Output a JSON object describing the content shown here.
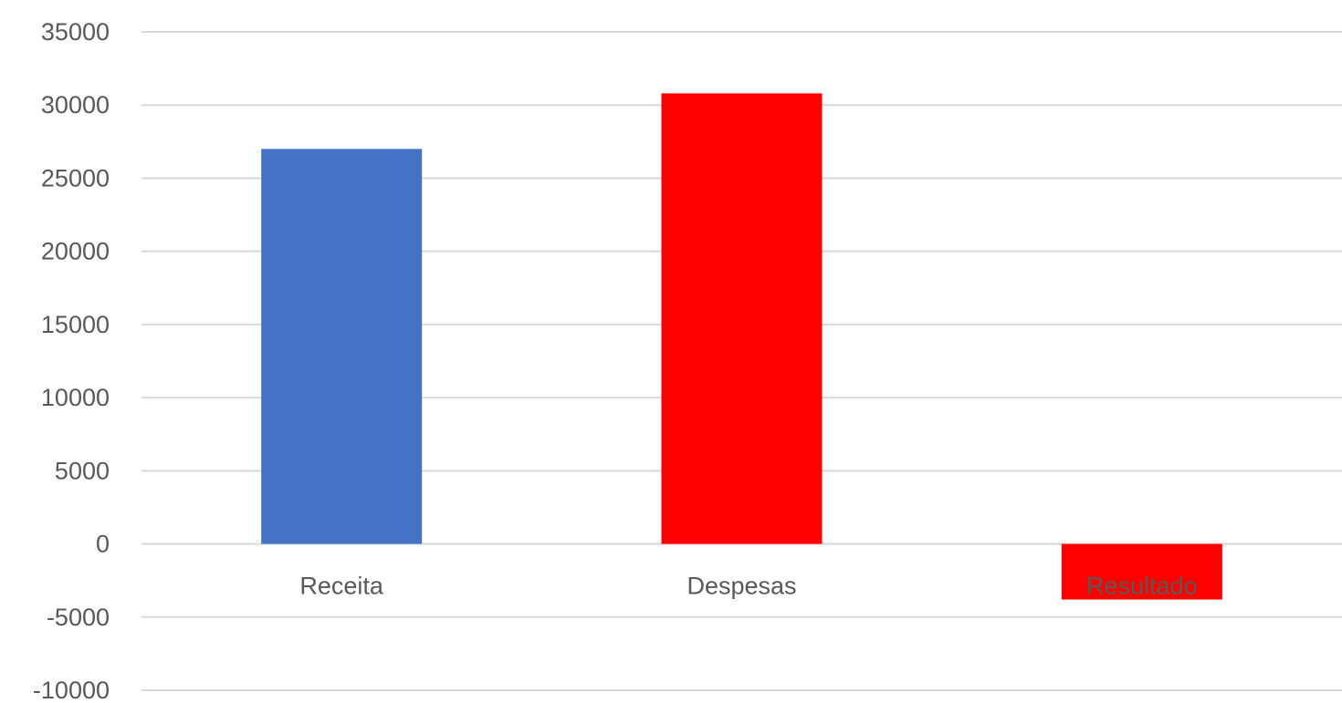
{
  "chart_data": {
    "type": "bar",
    "categories": [
      "Receita",
      "Despesas",
      "Resultado"
    ],
    "values": [
      27000,
      30800,
      -3800
    ],
    "bar_colors": [
      "#4472C4",
      "#FF0000",
      "#FF0000"
    ],
    "ylim": [
      -10000,
      35000
    ],
    "yticks": [
      35000,
      30000,
      25000,
      20000,
      15000,
      10000,
      5000,
      0,
      -5000,
      -10000
    ],
    "ytick_labels": [
      "35000",
      "30000",
      "25000",
      "20000",
      "15000",
      "10000",
      "5000",
      "0",
      "-5000",
      "-10000"
    ],
    "grid": true,
    "grid_color": "#D9D9D9",
    "legend": false,
    "title": "",
    "xlabel": "",
    "ylabel": ""
  }
}
